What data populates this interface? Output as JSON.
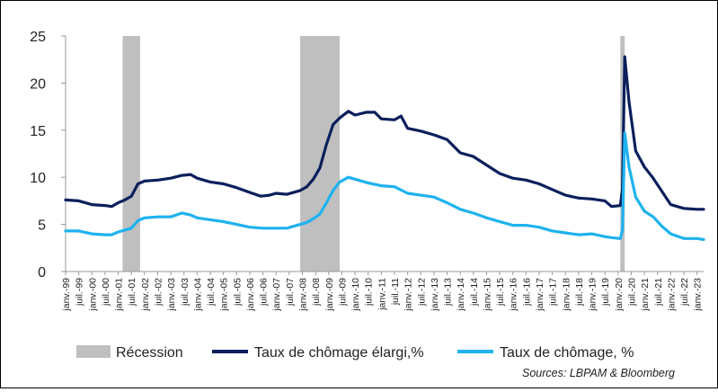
{
  "chart_data": {
    "type": "line",
    "title": "",
    "xlabel": "",
    "ylabel": "",
    "ylim": [
      0,
      25
    ],
    "y_ticks": [
      "0",
      "5",
      "10",
      "15",
      "20",
      "25"
    ],
    "x_start": "1999-01",
    "x_end": "2023-04",
    "x_tick_labels": [
      "janv.-99",
      "juil.-99",
      "janv.-00",
      "juil.-00",
      "janv.-01",
      "juil.-01",
      "janv.-02",
      "juil.-02",
      "janv.-03",
      "juil.-03",
      "janv.-04",
      "juil.-04",
      "janv.-05",
      "juil.-05",
      "janv.-06",
      "juil.-06",
      "janv.-07",
      "juil.-07",
      "janv.-08",
      "juil.-08",
      "janv.-09",
      "juil.-09",
      "janv.-10",
      "juil.-10",
      "janv.-11",
      "juil.-11",
      "janv.-12",
      "juil.-12",
      "janv.-13",
      "juil.-13",
      "janv.-14",
      "juil.-14",
      "janv.-15",
      "juil.-15",
      "janv.-16",
      "juil.-16",
      "janv.-17",
      "juil.-17",
      "janv.-18",
      "juil.-18",
      "janv.-19",
      "juil.-19",
      "janv.-20",
      "juil.-20",
      "janv.-21",
      "juil.-21",
      "janv.-22",
      "juil.-22",
      "janv.-23"
    ],
    "recessions": [
      {
        "start": "2001-03",
        "end": "2001-11"
      },
      {
        "start": "2007-12",
        "end": "2009-06"
      },
      {
        "start": "2020-02",
        "end": "2020-04"
      }
    ],
    "series": [
      {
        "name": "Taux de chômage élargi,%",
        "color": "#0b1f5c",
        "points": [
          [
            "1999-01",
            7.6
          ],
          [
            "1999-07",
            7.5
          ],
          [
            "2000-01",
            7.1
          ],
          [
            "2000-07",
            7.0
          ],
          [
            "2000-10",
            6.9
          ],
          [
            "2001-01",
            7.3
          ],
          [
            "2001-04",
            7.6
          ],
          [
            "2001-07",
            8.0
          ],
          [
            "2001-10",
            9.3
          ],
          [
            "2002-01",
            9.6
          ],
          [
            "2002-07",
            9.7
          ],
          [
            "2003-01",
            9.9
          ],
          [
            "2003-06",
            10.2
          ],
          [
            "2003-10",
            10.3
          ],
          [
            "2004-01",
            9.9
          ],
          [
            "2004-07",
            9.5
          ],
          [
            "2005-01",
            9.3
          ],
          [
            "2005-07",
            8.9
          ],
          [
            "2006-01",
            8.4
          ],
          [
            "2006-06",
            8.0
          ],
          [
            "2006-10",
            8.1
          ],
          [
            "2007-01",
            8.3
          ],
          [
            "2007-06",
            8.2
          ],
          [
            "2007-12",
            8.6
          ],
          [
            "2008-03",
            9.0
          ],
          [
            "2008-06",
            9.8
          ],
          [
            "2008-09",
            11.0
          ],
          [
            "2008-12",
            13.5
          ],
          [
            "2009-03",
            15.6
          ],
          [
            "2009-06",
            16.3
          ],
          [
            "2009-10",
            17.0
          ],
          [
            "2010-01",
            16.6
          ],
          [
            "2010-06",
            16.9
          ],
          [
            "2010-10",
            16.9
          ],
          [
            "2011-01",
            16.2
          ],
          [
            "2011-07",
            16.1
          ],
          [
            "2011-10",
            16.5
          ],
          [
            "2012-01",
            15.2
          ],
          [
            "2012-07",
            14.9
          ],
          [
            "2013-01",
            14.5
          ],
          [
            "2013-07",
            14.0
          ],
          [
            "2014-01",
            12.6
          ],
          [
            "2014-07",
            12.2
          ],
          [
            "2015-01",
            11.3
          ],
          [
            "2015-07",
            10.4
          ],
          [
            "2016-01",
            9.9
          ],
          [
            "2016-07",
            9.7
          ],
          [
            "2017-01",
            9.3
          ],
          [
            "2017-07",
            8.7
          ],
          [
            "2018-01",
            8.1
          ],
          [
            "2018-07",
            7.8
          ],
          [
            "2019-01",
            7.7
          ],
          [
            "2019-07",
            7.5
          ],
          [
            "2019-10",
            6.9
          ],
          [
            "2020-02",
            7.0
          ],
          [
            "2020-03",
            8.7
          ],
          [
            "2020-04",
            22.8
          ],
          [
            "2020-06",
            18.0
          ],
          [
            "2020-09",
            12.8
          ],
          [
            "2021-01",
            11.1
          ],
          [
            "2021-05",
            9.9
          ],
          [
            "2021-09",
            8.5
          ],
          [
            "2022-01",
            7.1
          ],
          [
            "2022-07",
            6.7
          ],
          [
            "2023-01",
            6.6
          ],
          [
            "2023-04",
            6.6
          ]
        ]
      },
      {
        "name": "Taux de chômage, %",
        "color": "#1eb2ef",
        "points": [
          [
            "1999-01",
            4.3
          ],
          [
            "1999-07",
            4.3
          ],
          [
            "2000-01",
            4.0
          ],
          [
            "2000-07",
            3.9
          ],
          [
            "2000-10",
            3.9
          ],
          [
            "2001-01",
            4.2
          ],
          [
            "2001-04",
            4.4
          ],
          [
            "2001-07",
            4.6
          ],
          [
            "2001-10",
            5.4
          ],
          [
            "2002-01",
            5.7
          ],
          [
            "2002-07",
            5.8
          ],
          [
            "2003-01",
            5.8
          ],
          [
            "2003-06",
            6.2
          ],
          [
            "2003-10",
            6.0
          ],
          [
            "2004-01",
            5.7
          ],
          [
            "2004-07",
            5.5
          ],
          [
            "2005-01",
            5.3
          ],
          [
            "2005-07",
            5.0
          ],
          [
            "2006-01",
            4.7
          ],
          [
            "2006-07",
            4.6
          ],
          [
            "2007-01",
            4.6
          ],
          [
            "2007-06",
            4.6
          ],
          [
            "2007-12",
            5.0
          ],
          [
            "2008-03",
            5.2
          ],
          [
            "2008-06",
            5.6
          ],
          [
            "2008-09",
            6.1
          ],
          [
            "2008-12",
            7.3
          ],
          [
            "2009-03",
            8.6
          ],
          [
            "2009-06",
            9.5
          ],
          [
            "2009-10",
            10.0
          ],
          [
            "2010-01",
            9.8
          ],
          [
            "2010-07",
            9.4
          ],
          [
            "2011-01",
            9.1
          ],
          [
            "2011-07",
            9.0
          ],
          [
            "2012-01",
            8.3
          ],
          [
            "2012-07",
            8.1
          ],
          [
            "2013-01",
            7.9
          ],
          [
            "2013-07",
            7.3
          ],
          [
            "2014-01",
            6.6
          ],
          [
            "2014-07",
            6.2
          ],
          [
            "2015-01",
            5.7
          ],
          [
            "2015-07",
            5.3
          ],
          [
            "2016-01",
            4.9
          ],
          [
            "2016-07",
            4.9
          ],
          [
            "2017-01",
            4.7
          ],
          [
            "2017-07",
            4.3
          ],
          [
            "2018-01",
            4.1
          ],
          [
            "2018-07",
            3.9
          ],
          [
            "2019-01",
            4.0
          ],
          [
            "2019-07",
            3.7
          ],
          [
            "2019-10",
            3.6
          ],
          [
            "2020-02",
            3.5
          ],
          [
            "2020-03",
            4.4
          ],
          [
            "2020-04",
            14.7
          ],
          [
            "2020-06",
            11.1
          ],
          [
            "2020-09",
            7.9
          ],
          [
            "2021-01",
            6.4
          ],
          [
            "2021-05",
            5.8
          ],
          [
            "2021-09",
            4.8
          ],
          [
            "2022-01",
            4.0
          ],
          [
            "2022-07",
            3.5
          ],
          [
            "2023-01",
            3.5
          ],
          [
            "2023-04",
            3.4
          ]
        ]
      }
    ],
    "legend": {
      "position": "bottom",
      "items": [
        {
          "label": "Récession",
          "color": "#bfbfbf",
          "kind": "box"
        },
        {
          "label": "Taux de chômage élargi,%",
          "color": "#0b1f5c",
          "kind": "line"
        },
        {
          "label": "Taux de chômage, %",
          "color": "#1eb2ef",
          "kind": "line"
        }
      ]
    },
    "source": "Sources: LBPAM & Bloomberg"
  }
}
